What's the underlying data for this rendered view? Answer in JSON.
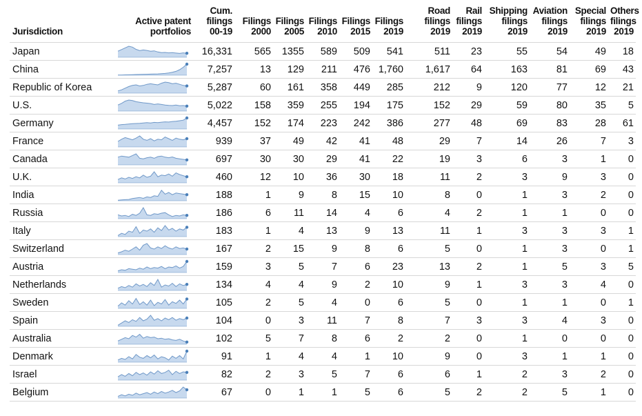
{
  "header": {
    "jurisdiction": [
      "Jurisdiction"
    ],
    "portfolios": [
      "Active patent",
      "portfolios"
    ],
    "cum": [
      "Cum.",
      "filings",
      "00-19"
    ],
    "f2000": [
      "Filings",
      "2000"
    ],
    "f2005": [
      "Filings",
      "2005"
    ],
    "f2010": [
      "Filings",
      "2010"
    ],
    "f2015": [
      "Filings",
      "2015"
    ],
    "f2019": [
      "Filings",
      "2019"
    ],
    "road": [
      "Road",
      "filings",
      "2019"
    ],
    "rail": [
      "Rail",
      "filings",
      "2019"
    ],
    "shipping": [
      "Shipping",
      "filings",
      "2019"
    ],
    "aviation": [
      "Aviation",
      "filings",
      "2019"
    ],
    "special": [
      "Special",
      "filings",
      "2019"
    ],
    "others": [
      "Others",
      "filings",
      "2019"
    ]
  },
  "colors": {
    "spark_fill": "#c7d9ee",
    "spark_line": "#6f98c8",
    "spark_dot": "#4a7fb8",
    "rule": "#d7d7d7"
  },
  "rows": [
    {
      "name": "Japan",
      "cum": "16,331",
      "f2000": "565",
      "f2005": "1355",
      "f2010": "589",
      "f2015": "509",
      "f2019": "541",
      "road": "511",
      "rail": "23",
      "shipping": "55",
      "aviation": "54",
      "special": "49",
      "others": "18",
      "spark": [
        0.55,
        0.7,
        0.85,
        1.0,
        0.92,
        0.72,
        0.6,
        0.66,
        0.62,
        0.55,
        0.58,
        0.48,
        0.42,
        0.44,
        0.4,
        0.42,
        0.38,
        0.35,
        0.4,
        0.36
      ]
    },
    {
      "name": "China",
      "cum": "7,257",
      "f2000": "13",
      "f2005": "129",
      "f2010": "211",
      "f2015": "476",
      "f2019": "1,760",
      "road": "1,617",
      "rail": "64",
      "shipping": "163",
      "aviation": "81",
      "special": "69",
      "others": "43",
      "spark": [
        0.01,
        0.02,
        0.03,
        0.04,
        0.05,
        0.06,
        0.07,
        0.08,
        0.09,
        0.1,
        0.11,
        0.12,
        0.14,
        0.16,
        0.2,
        0.27,
        0.35,
        0.5,
        0.72,
        1.0
      ]
    },
    {
      "name": "Republic of Korea",
      "cum": "5,287",
      "f2000": "60",
      "f2005": "161",
      "f2010": "358",
      "f2015": "449",
      "f2019": "285",
      "road": "212",
      "rail": "9",
      "shipping": "120",
      "aviation": "77",
      "special": "12",
      "others": "21",
      "spark": [
        0.2,
        0.3,
        0.45,
        0.6,
        0.7,
        0.75,
        0.65,
        0.7,
        0.8,
        0.85,
        0.8,
        0.75,
        0.9,
        1.0,
        0.95,
        0.85,
        0.9,
        0.8,
        0.7,
        0.65
      ]
    },
    {
      "name": "U.S.",
      "cum": "5,022",
      "f2000": "158",
      "f2005": "359",
      "f2010": "255",
      "f2015": "194",
      "f2019": "175",
      "road": "152",
      "rail": "29",
      "shipping": "59",
      "aviation": "80",
      "special": "35",
      "others": "5",
      "spark": [
        0.55,
        0.7,
        0.9,
        1.0,
        0.95,
        0.85,
        0.8,
        0.75,
        0.72,
        0.68,
        0.6,
        0.65,
        0.6,
        0.55,
        0.52,
        0.5,
        0.55,
        0.48,
        0.5,
        0.45
      ]
    },
    {
      "name": "Germany",
      "cum": "4,457",
      "f2000": "152",
      "f2005": "174",
      "f2010": "223",
      "f2015": "242",
      "f2019": "386",
      "road": "277",
      "rail": "48",
      "shipping": "69",
      "aviation": "83",
      "special": "28",
      "others": "61",
      "spark": [
        0.35,
        0.4,
        0.42,
        0.45,
        0.48,
        0.5,
        0.52,
        0.55,
        0.58,
        0.55,
        0.6,
        0.58,
        0.62,
        0.65,
        0.63,
        0.68,
        0.7,
        0.75,
        0.8,
        1.0
      ]
    },
    {
      "name": "France",
      "cum": "939",
      "f2000": "37",
      "f2005": "49",
      "f2010": "42",
      "f2015": "41",
      "f2019": "48",
      "road": "29",
      "rail": "7",
      "shipping": "14",
      "aviation": "26",
      "special": "7",
      "others": "3",
      "spark": [
        0.5,
        0.7,
        0.85,
        0.75,
        0.65,
        0.8,
        1.0,
        0.7,
        0.6,
        0.75,
        0.55,
        0.7,
        0.65,
        0.9,
        0.75,
        0.6,
        0.8,
        0.7,
        0.65,
        0.75
      ]
    },
    {
      "name": "Canada",
      "cum": "697",
      "f2000": "30",
      "f2005": "30",
      "f2010": "29",
      "f2015": "41",
      "f2019": "22",
      "road": "19",
      "rail": "3",
      "shipping": "6",
      "aviation": "3",
      "special": "1",
      "others": "0",
      "spark": [
        0.7,
        0.8,
        0.75,
        0.7,
        0.85,
        1.0,
        0.6,
        0.55,
        0.65,
        0.7,
        0.6,
        0.75,
        0.8,
        0.7,
        0.65,
        0.72,
        0.6,
        0.55,
        0.5,
        0.45
      ]
    },
    {
      "name": "U.K.",
      "cum": "460",
      "f2000": "12",
      "f2005": "10",
      "f2010": "36",
      "f2015": "30",
      "f2019": "18",
      "road": "11",
      "rail": "2",
      "shipping": "3",
      "aviation": "9",
      "special": "3",
      "others": "0",
      "spark": [
        0.3,
        0.45,
        0.35,
        0.5,
        0.4,
        0.55,
        0.45,
        0.7,
        0.5,
        0.6,
        1.0,
        0.55,
        0.7,
        0.65,
        0.8,
        0.6,
        0.9,
        0.75,
        0.65,
        0.55
      ]
    },
    {
      "name": "India",
      "cum": "188",
      "f2000": "1",
      "f2005": "9",
      "f2010": "8",
      "f2015": "15",
      "f2019": "10",
      "road": "8",
      "rail": "0",
      "shipping": "1",
      "aviation": "3",
      "special": "2",
      "others": "0",
      "spark": [
        0.05,
        0.08,
        0.1,
        0.12,
        0.2,
        0.25,
        0.3,
        0.22,
        0.35,
        0.3,
        0.45,
        0.4,
        0.95,
        0.6,
        0.75,
        0.55,
        0.7,
        0.65,
        0.6,
        0.55
      ]
    },
    {
      "name": "Russia",
      "cum": "186",
      "f2000": "6",
      "f2005": "11",
      "f2010": "14",
      "f2015": "4",
      "f2019": "6",
      "road": "4",
      "rail": "2",
      "shipping": "1",
      "aviation": "1",
      "special": "0",
      "others": "0",
      "spark": [
        0.35,
        0.25,
        0.3,
        0.2,
        0.4,
        0.3,
        0.5,
        1.0,
        0.35,
        0.3,
        0.45,
        0.4,
        0.5,
        0.55,
        0.35,
        0.2,
        0.3,
        0.25,
        0.35,
        0.3
      ]
    },
    {
      "name": "Italy",
      "cum": "183",
      "f2000": "1",
      "f2005": "4",
      "f2010": "13",
      "f2015": "9",
      "f2019": "13",
      "road": "11",
      "rail": "1",
      "shipping": "3",
      "aviation": "3",
      "special": "3",
      "others": "1",
      "spark": [
        0.1,
        0.3,
        0.2,
        0.5,
        0.4,
        0.9,
        0.3,
        0.6,
        0.5,
        0.7,
        0.4,
        0.8,
        0.55,
        1.0,
        0.6,
        0.75,
        0.5,
        0.7,
        0.6,
        0.85
      ]
    },
    {
      "name": "Switzerland",
      "cum": "167",
      "f2000": "2",
      "f2005": "15",
      "f2010": "9",
      "f2015": "8",
      "f2019": "6",
      "road": "5",
      "rail": "0",
      "shipping": "1",
      "aviation": "3",
      "special": "0",
      "others": "1",
      "spark": [
        0.15,
        0.25,
        0.4,
        0.3,
        0.5,
        0.7,
        0.4,
        0.85,
        1.0,
        0.6,
        0.5,
        0.7,
        0.55,
        0.8,
        0.6,
        0.5,
        0.7,
        0.55,
        0.6,
        0.5
      ]
    },
    {
      "name": "Austria",
      "cum": "159",
      "f2000": "3",
      "f2005": "5",
      "f2010": "7",
      "f2015": "6",
      "f2019": "23",
      "road": "13",
      "rail": "2",
      "shipping": "1",
      "aviation": "5",
      "special": "3",
      "others": "5",
      "spark": [
        0.15,
        0.25,
        0.2,
        0.35,
        0.3,
        0.25,
        0.4,
        0.3,
        0.5,
        0.35,
        0.45,
        0.4,
        0.55,
        0.35,
        0.5,
        0.45,
        0.6,
        0.4,
        0.55,
        1.0
      ]
    },
    {
      "name": "Netherlands",
      "cum": "134",
      "f2000": "4",
      "f2005": "4",
      "f2010": "9",
      "f2015": "2",
      "f2019": "10",
      "road": "9",
      "rail": "1",
      "shipping": "3",
      "aviation": "3",
      "special": "4",
      "others": "0",
      "spark": [
        0.2,
        0.35,
        0.25,
        0.45,
        0.3,
        0.6,
        0.4,
        0.55,
        0.35,
        0.7,
        0.45,
        1.0,
        0.3,
        0.5,
        0.4,
        0.65,
        0.35,
        0.6,
        0.45,
        0.55
      ]
    },
    {
      "name": "Sweden",
      "cum": "105",
      "f2000": "2",
      "f2005": "5",
      "f2010": "4",
      "f2015": "0",
      "f2019": "6",
      "road": "5",
      "rail": "0",
      "shipping": "1",
      "aviation": "1",
      "special": "0",
      "others": "1",
      "spark": [
        0.2,
        0.5,
        0.3,
        0.7,
        0.4,
        0.9,
        0.35,
        0.6,
        0.3,
        0.75,
        0.25,
        0.55,
        0.4,
        0.8,
        0.3,
        0.6,
        0.45,
        0.75,
        0.4,
        0.85
      ]
    },
    {
      "name": "Spain",
      "cum": "104",
      "f2000": "0",
      "f2005": "3",
      "f2010": "11",
      "f2015": "7",
      "f2019": "8",
      "road": "7",
      "rail": "3",
      "shipping": "3",
      "aviation": "4",
      "special": "3",
      "others": "0",
      "spark": [
        0.1,
        0.3,
        0.5,
        0.35,
        0.6,
        0.45,
        0.8,
        0.5,
        0.65,
        1.0,
        0.55,
        0.7,
        0.5,
        0.75,
        0.6,
        0.8,
        0.55,
        0.7,
        0.6,
        0.75
      ]
    },
    {
      "name": "Australia",
      "cum": "102",
      "f2000": "5",
      "f2005": "7",
      "f2010": "8",
      "f2015": "6",
      "f2019": "2",
      "road": "2",
      "rail": "0",
      "shipping": "1",
      "aviation": "0",
      "special": "0",
      "others": "0",
      "spark": [
        0.3,
        0.45,
        0.6,
        0.5,
        0.8,
        0.65,
        0.9,
        0.55,
        0.7,
        0.6,
        0.65,
        0.5,
        0.55,
        0.45,
        0.5,
        0.4,
        0.35,
        0.45,
        0.3,
        0.2
      ]
    },
    {
      "name": "Denmark",
      "cum": "91",
      "f2000": "1",
      "f2005": "4",
      "f2010": "4",
      "f2015": "1",
      "f2019": "10",
      "road": "9",
      "rail": "0",
      "shipping": "3",
      "aviation": "1",
      "special": "1",
      "others": "0",
      "spark": [
        0.2,
        0.35,
        0.25,
        0.5,
        0.3,
        0.7,
        0.45,
        0.35,
        0.6,
        0.4,
        0.65,
        0.3,
        0.5,
        0.4,
        0.2,
        0.55,
        0.35,
        0.6,
        0.3,
        1.0
      ]
    },
    {
      "name": "Israel",
      "cum": "82",
      "f2000": "2",
      "f2005": "3",
      "f2010": "5",
      "f2015": "7",
      "f2019": "6",
      "road": "6",
      "rail": "1",
      "shipping": "2",
      "aviation": "3",
      "special": "2",
      "others": "0",
      "spark": [
        0.3,
        0.5,
        0.35,
        0.6,
        0.4,
        0.7,
        0.5,
        0.65,
        0.45,
        0.75,
        0.55,
        0.85,
        0.6,
        0.7,
        0.9,
        0.5,
        0.8,
        0.6,
        0.75,
        0.7
      ]
    },
    {
      "name": "Belgium",
      "cum": "67",
      "f2000": "0",
      "f2005": "1",
      "f2010": "1",
      "f2015": "5",
      "f2019": "6",
      "road": "5",
      "rail": "2",
      "shipping": "2",
      "aviation": "5",
      "special": "1",
      "others": "0",
      "spark": [
        0.15,
        0.3,
        0.2,
        0.35,
        0.25,
        0.45,
        0.3,
        0.4,
        0.5,
        0.35,
        0.55,
        0.4,
        0.6,
        0.45,
        0.55,
        0.7,
        0.5,
        0.65,
        1.0,
        0.75
      ]
    }
  ]
}
